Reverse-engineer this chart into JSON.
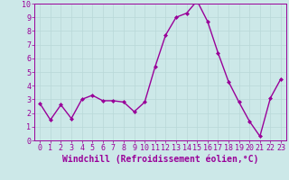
{
  "x": [
    0,
    1,
    2,
    3,
    4,
    5,
    6,
    7,
    8,
    9,
    10,
    11,
    12,
    13,
    14,
    15,
    16,
    17,
    18,
    19,
    20,
    21,
    22,
    23
  ],
  "y": [
    2.7,
    1.5,
    2.6,
    1.6,
    3.0,
    3.3,
    2.9,
    2.9,
    2.8,
    2.1,
    2.8,
    5.4,
    7.7,
    9.0,
    9.3,
    10.2,
    8.7,
    6.4,
    4.3,
    2.8,
    1.4,
    0.3,
    3.1,
    4.5
  ],
  "line_color": "#990099",
  "marker": "D",
  "marker_size": 2,
  "linewidth": 1.0,
  "xlabel": "Windchill (Refroidissement éolien,°C)",
  "xlabel_fontsize": 7,
  "ylim": [
    0,
    10
  ],
  "xlim": [
    -0.5,
    23.5
  ],
  "yticks": [
    0,
    1,
    2,
    3,
    4,
    5,
    6,
    7,
    8,
    9,
    10
  ],
  "xticks": [
    0,
    1,
    2,
    3,
    4,
    5,
    6,
    7,
    8,
    9,
    10,
    11,
    12,
    13,
    14,
    15,
    16,
    17,
    18,
    19,
    20,
    21,
    22,
    23
  ],
  "grid_color": "#b8d8d8",
  "bg_color": "#cce8e8",
  "tick_fontsize": 6,
  "tick_color": "#990099",
  "axis_color": "#990099",
  "xlabel_bold": true
}
